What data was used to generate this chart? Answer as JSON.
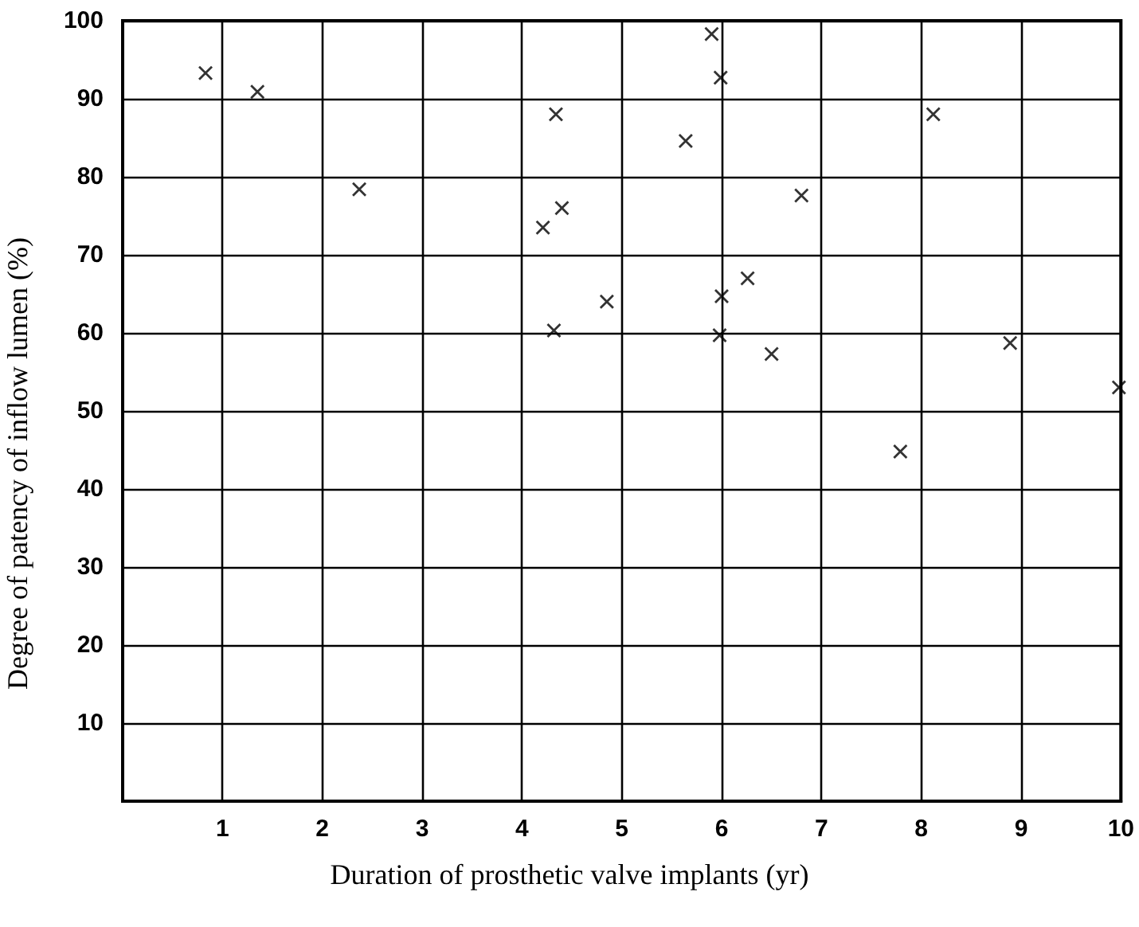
{
  "chart_data": {
    "type": "scatter",
    "xlabel": "Duration of prosthetic valve implants (yr)",
    "ylabel": "Degree of patency of inflow lumen (%)",
    "x": [
      0.83,
      1.35,
      2.37,
      4.34,
      4.4,
      4.21,
      4.85,
      4.32,
      5.9,
      5.99,
      5.64,
      6.8,
      8.12,
      6.26,
      6.0,
      5.98,
      6.5,
      8.89,
      9.98,
      7.79
    ],
    "series": [
      {
        "color": "#000000",
        "values": [
          93.3,
          90.9,
          78.4,
          88,
          76,
          73.5,
          64,
          60.3,
          98.3,
          92.7,
          84.6,
          77.6,
          88,
          67,
          64.7,
          59.7,
          57.3,
          58.7,
          53,
          44.8
        ]
      }
    ],
    "xlim": [
      0,
      10
    ],
    "ylim": [
      0,
      100
    ],
    "xticks": [
      1,
      2,
      3,
      4,
      5,
      6,
      7,
      8,
      9,
      10
    ],
    "yticks": [
      10,
      20,
      30,
      40,
      50,
      60,
      70,
      80,
      90,
      100
    ],
    "grid": true,
    "marker": "cross"
  }
}
